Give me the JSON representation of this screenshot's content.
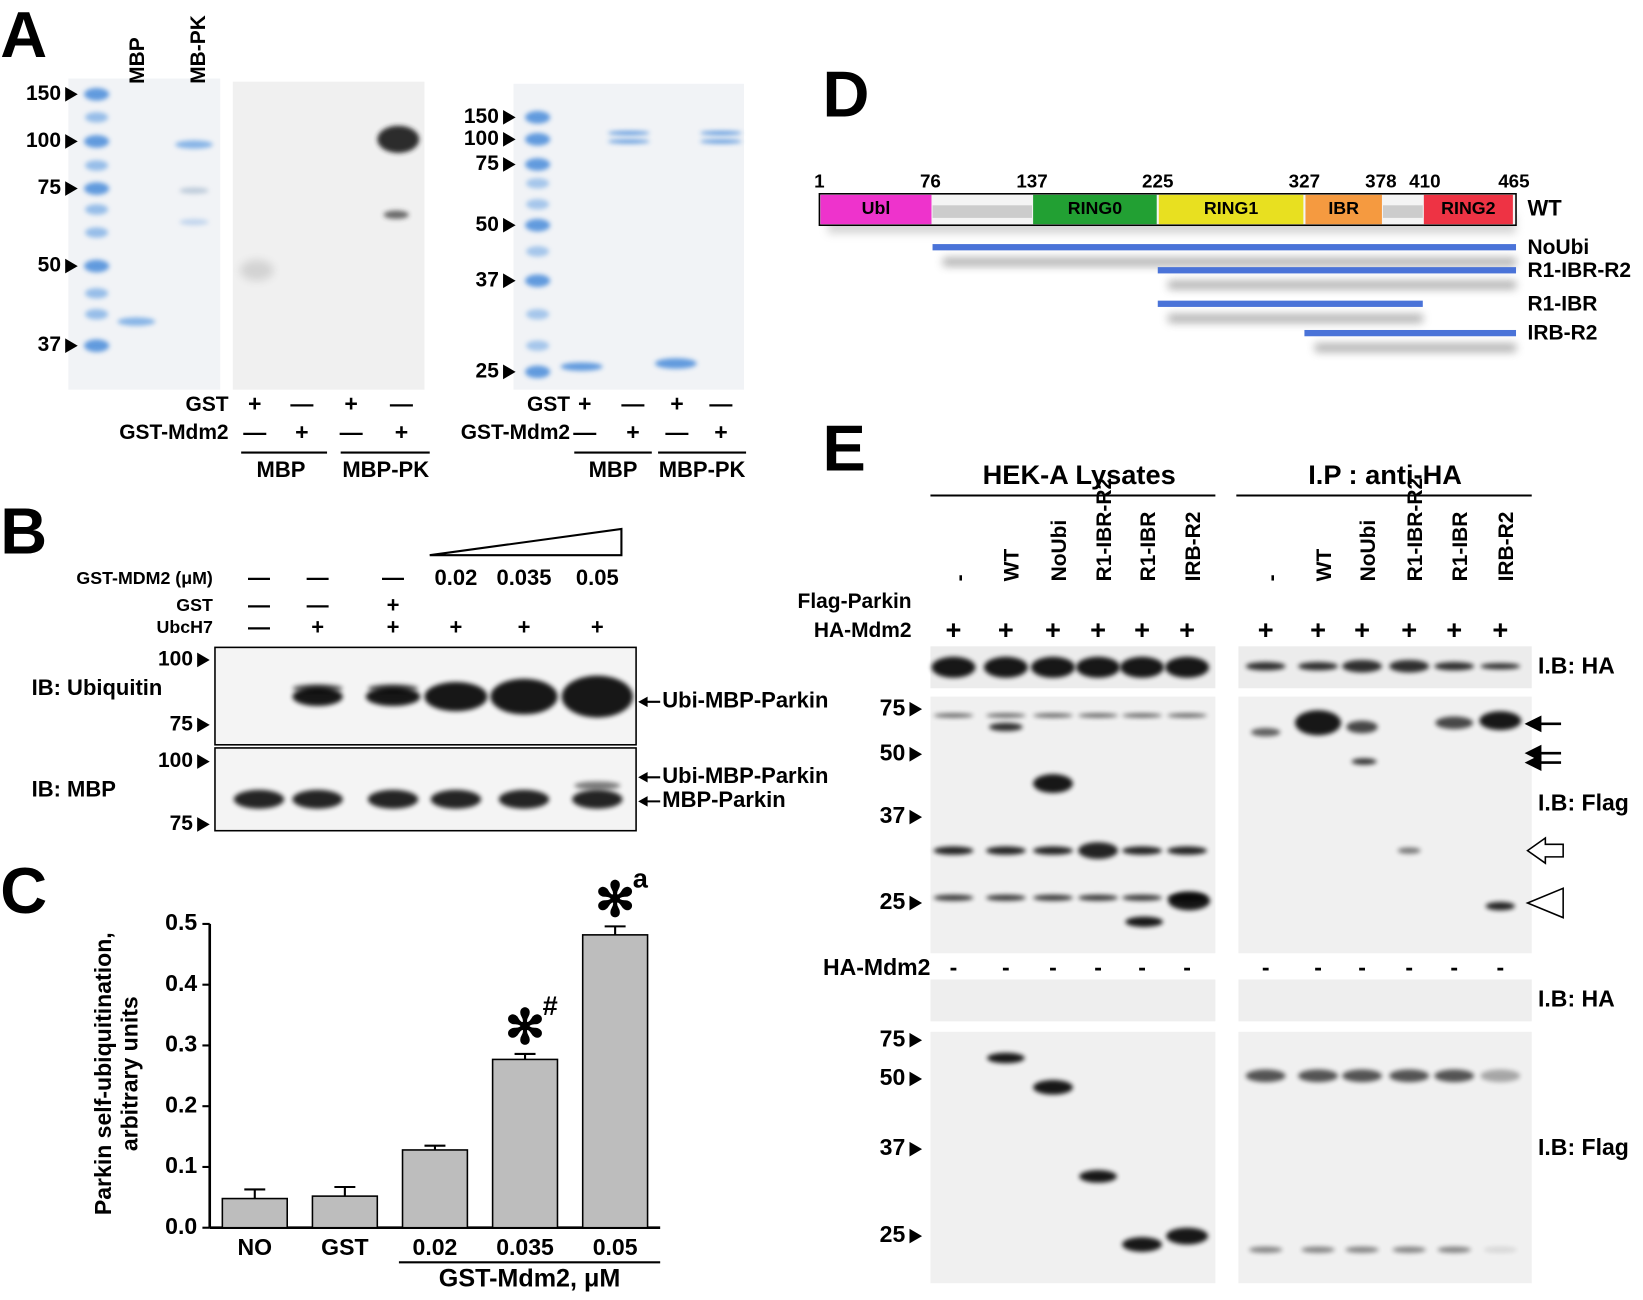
{
  "panels": {
    "A": {
      "label": "A",
      "gel1_markers": [
        "150",
        "100",
        "75",
        "50",
        "37"
      ],
      "lanes": [
        "MBP",
        "MB-PK"
      ],
      "blot_rows": [
        {
          "name": "GST",
          "signs": [
            "+",
            "—",
            "+",
            "—"
          ]
        },
        {
          "name": "GST-Mdm2",
          "signs": [
            "—",
            "+",
            "—",
            "+"
          ]
        }
      ],
      "blot_groups": [
        "MBP",
        "MBP-PK"
      ],
      "gel2_markers": [
        "150",
        "100",
        "75",
        "50",
        "37",
        "25"
      ],
      "gel2_rows": [
        {
          "name": "GST",
          "signs": [
            "+",
            "—",
            "+",
            "—"
          ]
        },
        {
          "name": "GST-Mdm2",
          "signs": [
            "—",
            "+",
            "—",
            "+"
          ]
        }
      ],
      "gel2_groups": [
        "MBP",
        "MBP-PK"
      ]
    },
    "B": {
      "label": "B",
      "rows": [
        {
          "name": "GST-MDM2 (μM)",
          "signs": [
            "—",
            "—",
            "—",
            "0.02",
            "0.035",
            "0.05"
          ]
        },
        {
          "name": "GST",
          "signs": [
            "—",
            "—",
            "+",
            null,
            null,
            null
          ]
        },
        {
          "name": "UbcH7",
          "signs": [
            "—",
            "+",
            "+",
            "+",
            "+",
            "+"
          ]
        }
      ],
      "blots": [
        {
          "name": "IB: Ubiquitin",
          "markers": [
            "100",
            "75"
          ],
          "annotations": [
            "Ubi-MBP-Parkin"
          ]
        },
        {
          "name": "IB: MBP",
          "markers": [
            "100",
            "75"
          ],
          "annotations": [
            "Ubi-MBP-Parkin",
            "MBP-Parkin"
          ]
        }
      ]
    },
    "D": {
      "label": "D",
      "positions": [
        "1",
        "76",
        "137",
        "225",
        "327",
        "378",
        "410",
        "465"
      ],
      "domains": [
        "Ubl",
        "RING0",
        "RING1",
        "IBR",
        "RING2"
      ],
      "full_length": "WT",
      "constructs": [
        "NoUbi",
        "R1-IBR-R2",
        "R1-IBR",
        "IRB-R2"
      ]
    },
    "E": {
      "label": "E",
      "groups": [
        "HEK-A Lysates",
        "I.P : anti-HA"
      ],
      "lane_row": "Flag-Parkin",
      "lanes": [
        "-",
        "WT",
        "NoUbi",
        "R1-IBR-R2",
        "R1-IBR",
        "IRB-R2"
      ],
      "sign_row": {
        "name": "HA-Mdm2",
        "signs": [
          "+",
          "+",
          "+",
          "+",
          "+",
          "+"
        ]
      },
      "upper_markers": [
        "75",
        "50",
        "37",
        "25"
      ],
      "lower_row": {
        "name": "HA-Mdm2",
        "signs": [
          "-",
          "-",
          "-",
          "-",
          "-",
          "-"
        ]
      },
      "lower_markers": [
        "75",
        "50",
        "37",
        "25"
      ],
      "blot_labels": [
        "I.B: HA",
        "I.B: Flag",
        "I.B: HA",
        "I.B: Flag"
      ]
    }
  },
  "chart_data": {
    "type": "bar",
    "panel_label": "C",
    "y_label": [
      "Parkin self-ubiquitination,",
      "arbitrary units"
    ],
    "categories": [
      "NO",
      "GST",
      "0.02",
      "0.035",
      "0.05"
    ],
    "x_group_label": "GST-Mdm2, μM",
    "values": [
      0.048,
      0.052,
      0.128,
      0.277,
      0.482
    ],
    "errors": [
      0.015,
      0.015,
      0.007,
      0.009,
      0.014
    ],
    "annotations": [
      null,
      null,
      null,
      {
        "symbol": "✻",
        "mark": "#"
      },
      {
        "symbol": "✻",
        "mark": "a"
      }
    ],
    "color": "#bdbdbd",
    "ylim": [
      0,
      0.5
    ],
    "yticks": [
      {
        "value": 0,
        "label": "0.0"
      },
      0.1,
      0.2,
      0.3,
      0.4,
      0.5
    ]
  }
}
